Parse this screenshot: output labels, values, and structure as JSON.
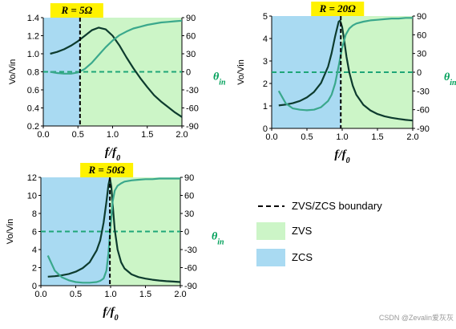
{
  "chart_data": [
    {
      "type": "line",
      "label": "R = 5Ω",
      "xlabel": "f/f",
      "xlabel_sub": "0",
      "ylabel": "Vo/Vin",
      "xlim": [
        0.0,
        2.0
      ],
      "ylim": [
        0.2,
        1.4
      ],
      "y2lim": [
        -90,
        90
      ],
      "xticks": [
        "0.0",
        "0.5",
        "1.0",
        "1.5",
        "2.0"
      ],
      "yticks": [
        "0.2",
        "0.4",
        "0.6",
        "0.8",
        "1.0",
        "1.2",
        "1.4"
      ],
      "y2ticks": [
        "-90",
        "-60",
        "-30",
        "0",
        "30",
        "60",
        "90"
      ],
      "y2label": "θ",
      "y2label_sub": "in",
      "boundary": 0.53,
      "series": [
        {
          "role": "gain",
          "color": "#0d3b2e",
          "x": [
            0.1,
            0.2,
            0.3,
            0.4,
            0.5,
            0.6,
            0.7,
            0.8,
            0.9,
            1.0,
            1.1,
            1.2,
            1.3,
            1.4,
            1.5,
            1.6,
            1.7,
            1.8,
            1.9,
            2.0
          ],
          "y": [
            1.0,
            1.02,
            1.05,
            1.09,
            1.14,
            1.2,
            1.26,
            1.29,
            1.27,
            1.2,
            1.09,
            0.96,
            0.84,
            0.73,
            0.63,
            0.54,
            0.47,
            0.41,
            0.35,
            0.3
          ]
        },
        {
          "role": "phase",
          "color": "#3aa88c",
          "x": [
            0.1,
            0.2,
            0.3,
            0.4,
            0.5,
            0.6,
            0.7,
            0.8,
            0.9,
            1.0,
            1.1,
            1.2,
            1.3,
            1.4,
            1.5,
            1.6,
            1.7,
            1.8,
            1.9,
            2.0
          ],
          "y": [
            0,
            -2,
            -3,
            -3,
            -1,
            5,
            15,
            28,
            41,
            52,
            61,
            67,
            72,
            75,
            78,
            80,
            82,
            83,
            84,
            85
          ]
        }
      ]
    },
    {
      "type": "line",
      "label": "R = 20Ω",
      "xlabel": "f/f",
      "xlabel_sub": "0",
      "ylabel": "Vo/Vin",
      "xlim": [
        0.0,
        2.0
      ],
      "ylim": [
        0,
        5
      ],
      "y2lim": [
        -90,
        90
      ],
      "xticks": [
        "0.0",
        "0.5",
        "1.0",
        "1.5",
        "2.0"
      ],
      "yticks": [
        "0",
        "1",
        "2",
        "3",
        "4",
        "5"
      ],
      "y2ticks": [
        "-90",
        "-60",
        "-30",
        "0",
        "30",
        "60",
        "90"
      ],
      "y2label": "θ",
      "y2label_sub": "in",
      "boundary": 0.98,
      "series": [
        {
          "role": "gain",
          "color": "#0d3b2e",
          "x": [
            0.1,
            0.2,
            0.3,
            0.4,
            0.5,
            0.6,
            0.7,
            0.8,
            0.85,
            0.9,
            0.95,
            0.97,
            1.0,
            1.03,
            1.06,
            1.1,
            1.15,
            1.2,
            1.3,
            1.4,
            1.5,
            1.6,
            1.7,
            1.8,
            1.9,
            2.0
          ],
          "y": [
            1.02,
            1.06,
            1.12,
            1.22,
            1.38,
            1.62,
            2.02,
            2.75,
            3.35,
            4.1,
            4.75,
            4.8,
            4.5,
            3.9,
            3.2,
            2.5,
            1.9,
            1.5,
            1.05,
            0.8,
            0.64,
            0.54,
            0.47,
            0.42,
            0.38,
            0.35
          ]
        },
        {
          "role": "phase",
          "color": "#3aa88c",
          "x": [
            0.1,
            0.2,
            0.3,
            0.4,
            0.5,
            0.6,
            0.7,
            0.8,
            0.85,
            0.9,
            0.95,
            1.0,
            1.05,
            1.1,
            1.15,
            1.2,
            1.3,
            1.4,
            1.5,
            1.6,
            1.7,
            1.8,
            1.9,
            2.0
          ],
          "y": [
            -30,
            -50,
            -58,
            -60,
            -61,
            -60,
            -56,
            -46,
            -36,
            -18,
            10,
            40,
            60,
            70,
            75,
            78,
            81,
            83,
            84,
            85,
            86,
            86,
            87,
            87
          ]
        }
      ]
    },
    {
      "type": "line",
      "label": "R = 50Ω",
      "xlabel": "f/f",
      "xlabel_sub": "0",
      "ylabel": "Vo/Vin",
      "xlim": [
        0.0,
        2.0
      ],
      "ylim": [
        0,
        12
      ],
      "y2lim": [
        -90,
        90
      ],
      "xticks": [
        "0.0",
        "0.5",
        "1.0",
        "1.5",
        "2.0"
      ],
      "yticks": [
        "0",
        "2",
        "4",
        "6",
        "8",
        "10",
        "12"
      ],
      "y2ticks": [
        "-90",
        "-60",
        "-30",
        "0",
        "30",
        "60",
        "90"
      ],
      "y2label": "θ",
      "y2label_sub": "in",
      "boundary": 0.99,
      "series": [
        {
          "role": "gain",
          "color": "#0d3b2e",
          "x": [
            0.1,
            0.2,
            0.3,
            0.4,
            0.5,
            0.6,
            0.7,
            0.8,
            0.85,
            0.9,
            0.94,
            0.97,
            0.99,
            1.01,
            1.03,
            1.06,
            1.1,
            1.15,
            1.2,
            1.3,
            1.4,
            1.5,
            1.6,
            1.7,
            1.8,
            1.9,
            2.0
          ],
          "y": [
            1.0,
            1.05,
            1.15,
            1.3,
            1.55,
            1.95,
            2.6,
            3.9,
            5.0,
            7.0,
            9.3,
            11.2,
            11.9,
            11.0,
            9.0,
            6.2,
            4.0,
            2.6,
            1.9,
            1.25,
            0.95,
            0.78,
            0.66,
            0.57,
            0.5,
            0.45,
            0.4
          ]
        },
        {
          "role": "phase",
          "color": "#3aa88c",
          "x": [
            0.1,
            0.2,
            0.3,
            0.4,
            0.5,
            0.6,
            0.7,
            0.8,
            0.85,
            0.9,
            0.94,
            0.97,
            1.0,
            1.03,
            1.06,
            1.1,
            1.15,
            1.2,
            1.3,
            1.4,
            1.5,
            1.6,
            1.7,
            1.8,
            1.9,
            2.0
          ],
          "y": [
            -40,
            -65,
            -76,
            -81,
            -84,
            -85,
            -85,
            -84,
            -82,
            -78,
            -65,
            -35,
            10,
            50,
            68,
            76,
            80,
            83,
            85,
            86,
            87,
            87,
            88,
            88,
            88,
            88
          ]
        }
      ]
    }
  ],
  "legend": {
    "boundary_label": "ZVS/ZCS boundary",
    "zvs_label": "ZVS",
    "zcs_label": "ZCS"
  },
  "colors": {
    "zvs": "#ccf5c7",
    "zcs": "#a9daf2",
    "reference": "#1fa678",
    "label_bg": "#fff200"
  },
  "watermark": "CSDN @Zevalin爱灰灰"
}
